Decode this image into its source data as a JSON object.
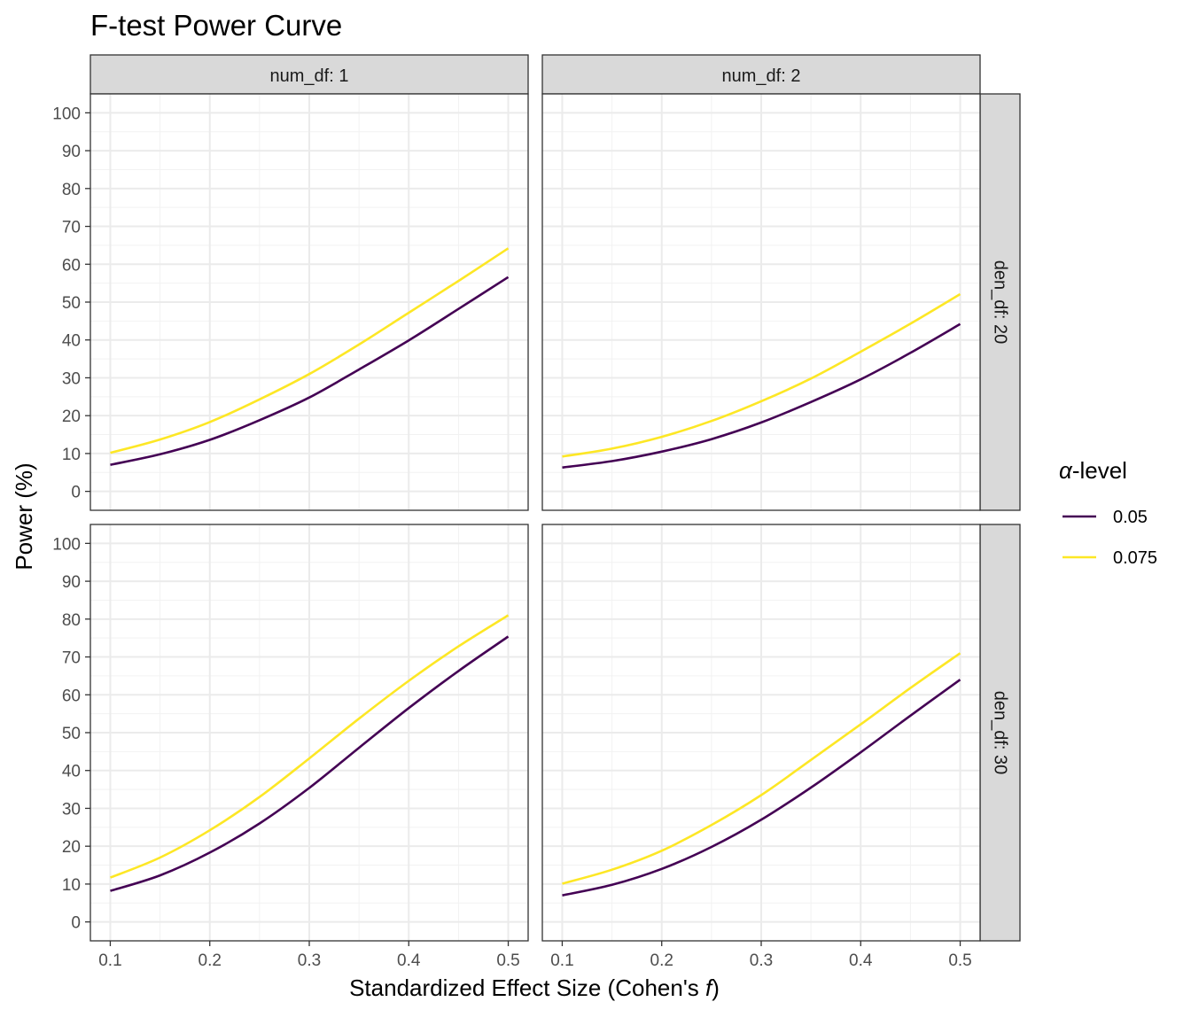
{
  "chart_data": {
    "type": "line",
    "title": "F-test Power Curve",
    "xlabel": "Standardized Effect Size (Cohen's ",
    "xlabel_italic": "f",
    "xlabel_suffix": ")",
    "ylabel": "Power (%)",
    "xlim": [
      0.1,
      0.5
    ],
    "ylim": [
      0,
      100
    ],
    "x_ticks": [
      "0.1",
      "0.2",
      "0.3",
      "0.4",
      "0.5"
    ],
    "y_ticks": [
      "0",
      "10",
      "20",
      "30",
      "40",
      "50",
      "60",
      "70",
      "80",
      "90",
      "100"
    ],
    "grid": true,
    "legend": {
      "title_symbol": "α",
      "title_text": "-level",
      "placement": "right",
      "entries": [
        "0.05",
        "0.075"
      ]
    },
    "colors": {
      "0.05": "#440154",
      "0.075": "#FDE725"
    },
    "facet_cols": [
      "num_df: 1",
      "num_df: 2"
    ],
    "facet_rows": [
      "den_df: 20",
      "den_df: 30"
    ],
    "x": [
      0.1,
      0.15,
      0.2,
      0.25,
      0.3,
      0.35,
      0.4,
      0.45,
      0.5
    ],
    "panels": [
      {
        "col": "num_df: 1",
        "row": "den_df: 20",
        "series": [
          {
            "name": "0.05",
            "values": [
              7.0,
              9.8,
              13.6,
              18.8,
              24.8,
              32.2,
              39.9,
              48.2,
              56.6
            ]
          },
          {
            "name": "0.075",
            "values": [
              10.2,
              13.7,
              18.3,
              24.3,
              31.0,
              38.8,
              47.2,
              55.6,
              64.2
            ]
          }
        ]
      },
      {
        "col": "num_df: 2",
        "row": "den_df: 20",
        "series": [
          {
            "name": "0.05",
            "values": [
              6.3,
              8.0,
              10.5,
              13.8,
              18.2,
              23.6,
              29.6,
              36.6,
              44.2
            ]
          },
          {
            "name": "0.075",
            "values": [
              9.2,
              11.3,
              14.4,
              18.6,
              23.8,
              29.8,
              36.9,
              44.3,
              52.1
            ]
          }
        ]
      },
      {
        "col": "num_df: 1",
        "row": "den_df: 30",
        "series": [
          {
            "name": "0.05",
            "values": [
              8.2,
              12.3,
              18.3,
              26.0,
              35.4,
              46.0,
              56.5,
              66.3,
              75.4
            ]
          },
          {
            "name": "0.075",
            "values": [
              11.7,
              17.0,
              24.2,
              33.0,
              43.2,
              53.7,
              63.7,
              72.8,
              81.0
            ]
          }
        ]
      },
      {
        "col": "num_df: 2",
        "row": "den_df: 30",
        "series": [
          {
            "name": "0.05",
            "values": [
              7.0,
              9.8,
              14.0,
              19.8,
              27.0,
              35.5,
              44.8,
              54.5,
              64.0
            ]
          },
          {
            "name": "0.075",
            "values": [
              10.1,
              13.8,
              18.8,
              25.6,
              33.5,
              42.8,
              52.2,
              61.8,
              71.0
            ]
          }
        ]
      }
    ]
  }
}
